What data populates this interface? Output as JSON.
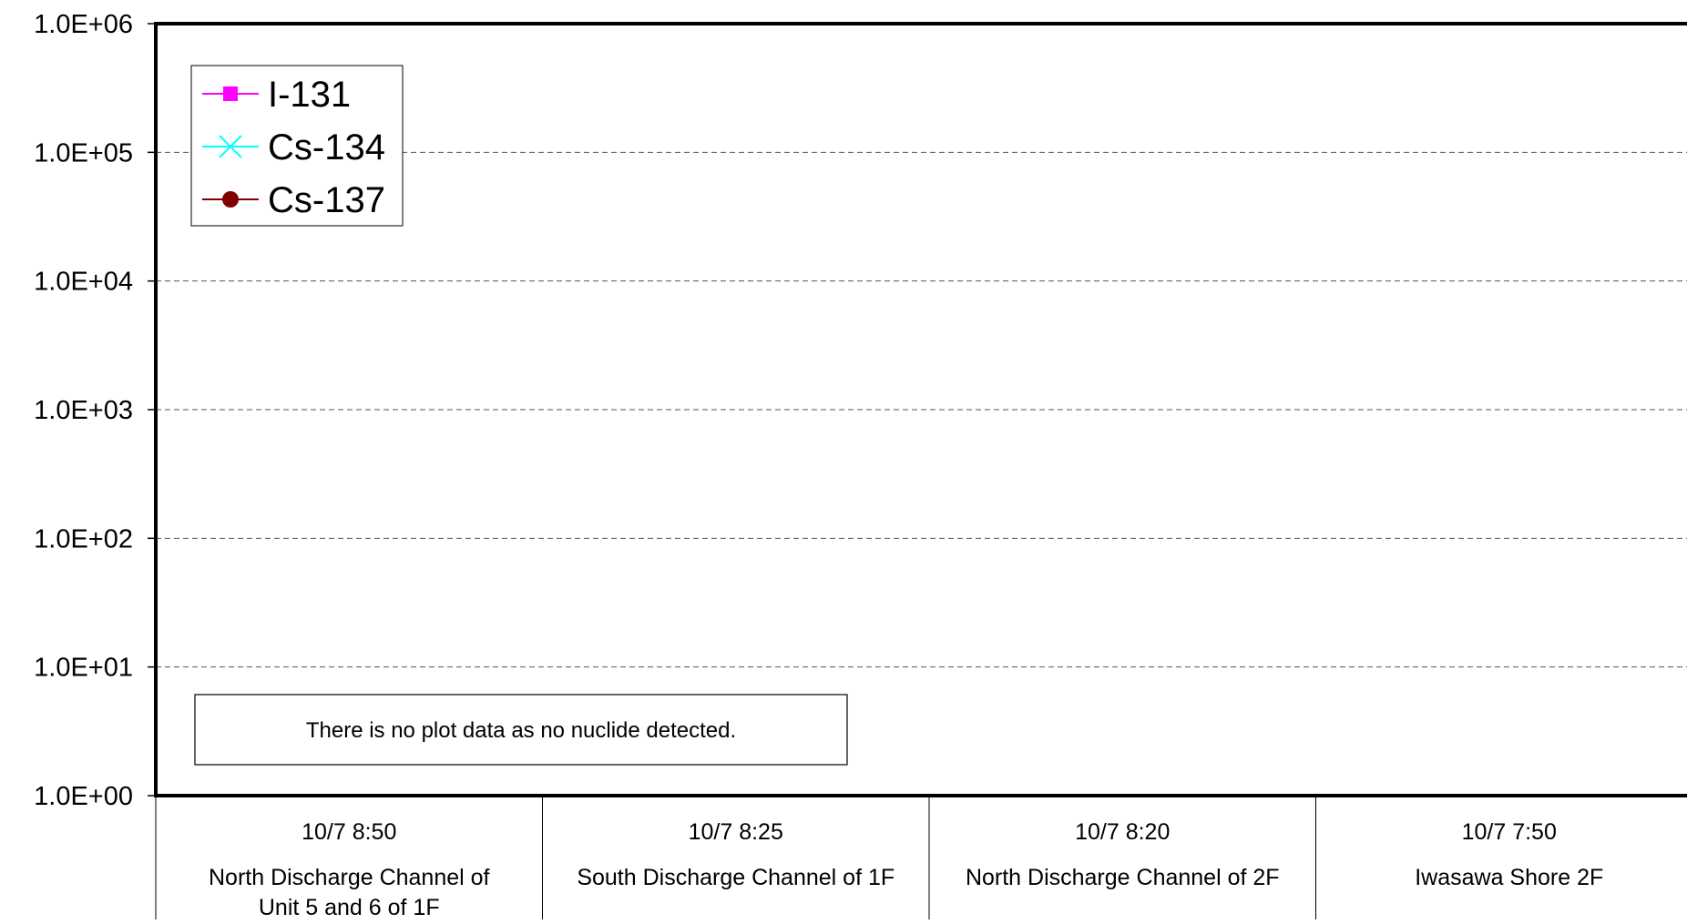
{
  "chart_data": {
    "type": "line",
    "y_scale": "log",
    "ylim": [
      1,
      1000000
    ],
    "y_tick_labels": [
      "1.0E+00",
      "1.0E+01",
      "1.0E+02",
      "1.0E+03",
      "1.0E+04",
      "1.0E+05",
      "1.0E+06"
    ],
    "grid": "horizontal dashed",
    "legend_position": "top-left",
    "categories": [
      {
        "date": "10/7 8:50",
        "location": "North Discharge Channel of Unit 5 and 6 of 1F"
      },
      {
        "date": "10/7 8:25",
        "location": "South Discharge Channel of 1F"
      },
      {
        "date": "10/7 8:20",
        "location": "North Discharge Channel of 2F"
      },
      {
        "date": "10/7 7:50",
        "location": "Iwasawa Shore 2F"
      }
    ],
    "series": [
      {
        "name": "I-131",
        "color": "#ff00ff",
        "marker": "square",
        "values": [
          null,
          null,
          null,
          null
        ]
      },
      {
        "name": "Cs-134",
        "color": "#00ffff",
        "marker": "x",
        "values": [
          null,
          null,
          null,
          null
        ]
      },
      {
        "name": "Cs-137",
        "color": "#800000",
        "marker": "circle",
        "values": [
          null,
          null,
          null,
          null
        ]
      }
    ],
    "annotation": "There is no plot data as no nuclide detected."
  }
}
